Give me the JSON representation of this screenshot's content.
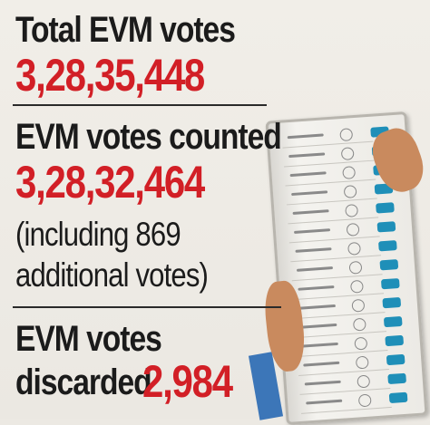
{
  "total": {
    "label": "Total EVM votes",
    "value": "3,28,35,448"
  },
  "counted": {
    "label": "EVM votes counted",
    "value": "3,28,32,464",
    "note_line1": "(including 869",
    "note_line2": "additional votes)"
  },
  "discarded": {
    "label_line1": "EVM votes",
    "label_line2": "discarded",
    "value": "2,984"
  },
  "colors": {
    "accent": "#d21f26",
    "text": "#1b1b1b",
    "background": "#ece9e3",
    "evm_button": "#1f8fb8"
  },
  "illustration": {
    "icon": "evm-machine-icon"
  }
}
